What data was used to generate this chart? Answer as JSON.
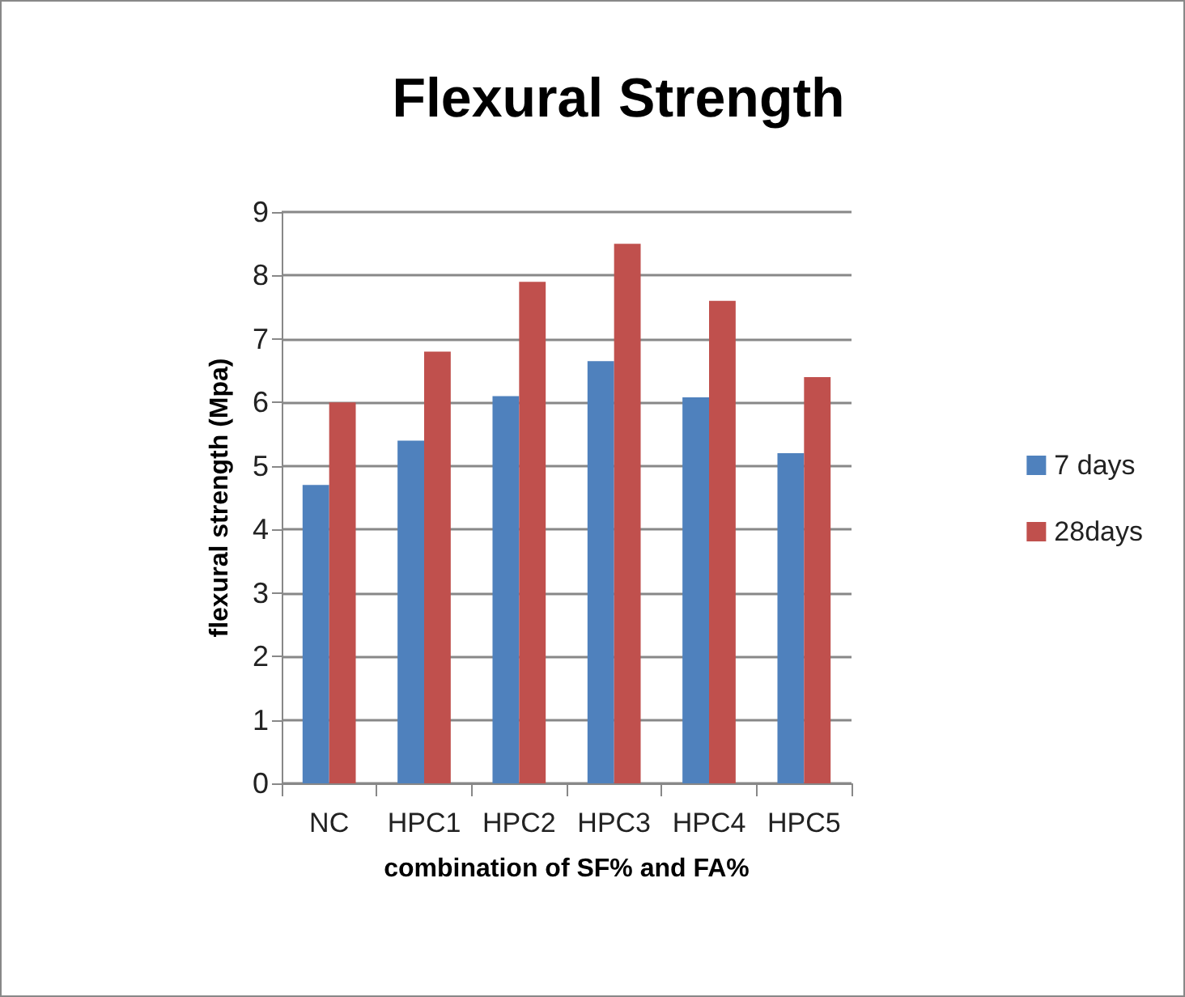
{
  "chart_data": {
    "type": "bar",
    "title": "Flexural Strength",
    "xlabel": "combination of SF% and FA%",
    "ylabel": "flexural strength (Mpa)",
    "categories": [
      "NC",
      "HPC1",
      "HPC2",
      "HPC3",
      "HPC4",
      "HPC5"
    ],
    "series": [
      {
        "name": "7 days",
        "color": "#4f81bd",
        "values": [
          4.7,
          5.4,
          6.1,
          6.65,
          6.08,
          5.2
        ]
      },
      {
        "name": "28days",
        "color": "#c0504d",
        "values": [
          6.0,
          6.8,
          7.9,
          8.5,
          7.6,
          6.4
        ]
      }
    ],
    "ylim": [
      0,
      9
    ],
    "yticks": [
      0,
      1,
      2,
      3,
      4,
      5,
      6,
      7,
      8,
      9
    ],
    "grid": "y",
    "legend": "right"
  }
}
